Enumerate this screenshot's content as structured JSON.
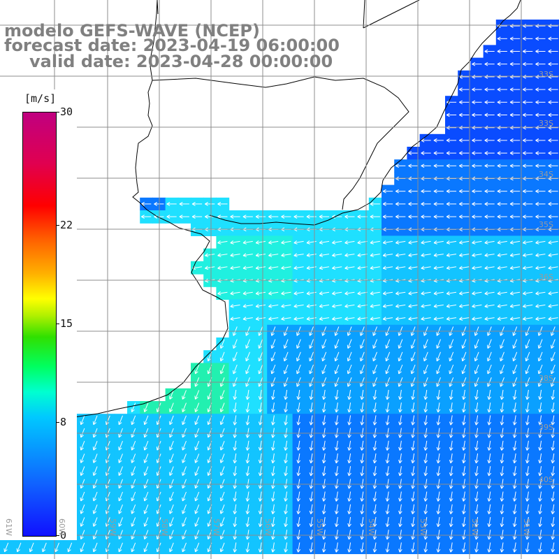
{
  "title": {
    "line1": "modelo GEFS-WAVE (NCEP)",
    "line2": "forecast date: 2023-04-19 06:00:00",
    "line3": "valid date: 2023-04-28 00:00:00"
  },
  "colorbar": {
    "unit": "[m/s]",
    "ticks": [
      "30",
      "22",
      "15",
      "8",
      "0"
    ],
    "tick_values": [
      30,
      22,
      15,
      8,
      0
    ],
    "range": [
      0,
      30
    ]
  },
  "lat_labels": [
    "33S",
    "33S",
    "34S",
    "35S",
    "36S",
    "38S",
    "39S",
    "40S"
  ],
  "lon_labels": [
    "61W",
    "60W",
    "59W",
    "58W",
    "57W",
    "56W",
    "55W",
    "54W",
    "53W",
    "52W",
    "51W"
  ],
  "colors": {
    "land": "#ffffff",
    "coast": "#000000",
    "grid": "#8c8c8c",
    "arrow": "#ffffff",
    "low_wind": "#0a50ff",
    "mid_wind": "#1fc8ff",
    "high_wind": "#22e6a0"
  }
}
